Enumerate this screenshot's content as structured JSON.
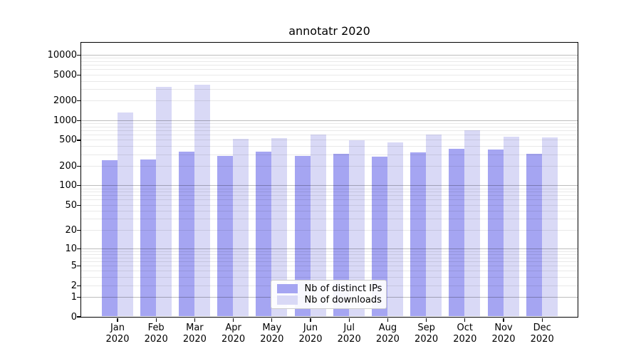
{
  "title": "annotatr 2020",
  "chart_data": {
    "type": "bar",
    "title": "annotatr 2020",
    "categories": [
      "Jan",
      "Feb",
      "Mar",
      "Apr",
      "May",
      "Jun",
      "Jul",
      "Aug",
      "Sep",
      "Oct",
      "Nov",
      "Dec"
    ],
    "category_year": "2020",
    "series": [
      {
        "name": "Nb of distinct IPs",
        "color": "#a5a5f2",
        "values": [
          241,
          249,
          332,
          285,
          332,
          281,
          305,
          274,
          324,
          367,
          358,
          305
        ]
      },
      {
        "name": "Nb of downloads",
        "color": "#d9d9f6",
        "values": [
          1310,
          3220,
          3505,
          516,
          538,
          606,
          496,
          452,
          596,
          705,
          562,
          548
        ]
      }
    ],
    "y_scale": "log1p",
    "ylim": [
      0,
      15500
    ],
    "y_ticks": [
      10000,
      5000,
      2000,
      1000,
      500,
      200,
      100,
      50,
      20,
      10,
      5,
      2,
      1,
      0
    ],
    "y_major_gridlines": [
      1,
      10,
      100,
      1000,
      10000
    ],
    "grid": "horizontal-major-and-minor",
    "legend_position": "lower center inside"
  },
  "colors": {
    "background": "#ffffff",
    "spine": "#000000",
    "major_grid": "rgba(0,0,0,0.26)",
    "minor_grid": "rgba(0,0,0,0.085)",
    "bar_distinct_ips": "#a5a5f2",
    "bar_downloads": "#d9d9f6",
    "text": "#000000",
    "legend_border": "#cccccc"
  }
}
